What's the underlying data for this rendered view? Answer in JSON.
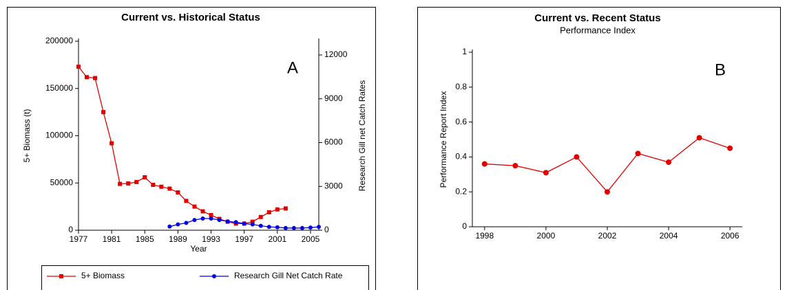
{
  "chart_data": [
    {
      "type": "line",
      "title": "Current vs. Historical Status",
      "annotation": "A",
      "xlabel": "Year",
      "ylabel": "5+ Biomass (t)",
      "y2label": "Research Gill net Catch Rates",
      "x": [
        1977,
        1978,
        1979,
        1980,
        1981,
        1982,
        1983,
        1984,
        1985,
        1986,
        1987,
        1988,
        1989,
        1990,
        1991,
        1992,
        1993,
        1994,
        1995,
        1996,
        1997,
        1998,
        1999,
        2000,
        2001,
        2002,
        2003,
        2004,
        2005,
        2006
      ],
      "series": [
        {
          "name": "5+ Biomass",
          "color": "#e00000",
          "marker": "square",
          "values": [
            173000,
            162000,
            161000,
            125000,
            92000,
            49000,
            49500,
            51000,
            56000,
            48000,
            46000,
            44000,
            40000,
            31000,
            25000,
            20000,
            16000,
            12000,
            9000,
            7000,
            7000,
            9000,
            14000,
            19000,
            22000,
            23000,
            null,
            null,
            null,
            null
          ]
        },
        {
          "name": "Research Gill Net Catch Rate",
          "color": "#0000e0",
          "marker": "circle",
          "axis": "y2",
          "values": [
            null,
            null,
            null,
            null,
            null,
            null,
            null,
            null,
            null,
            null,
            null,
            250,
            400,
            500,
            700,
            800,
            800,
            700,
            600,
            550,
            450,
            400,
            300,
            230,
            200,
            150,
            150,
            150,
            180,
            230
          ]
        }
      ],
      "xlim": [
        1977,
        2006
      ],
      "xticks": [
        1977,
        1981,
        1985,
        1989,
        1993,
        1997,
        2001,
        2005
      ],
      "ylim": [
        0,
        200000
      ],
      "yticks": [
        0,
        50000,
        100000,
        150000,
        200000
      ],
      "y2lim": [
        0,
        12940
      ],
      "y2ticks": [
        0,
        3000,
        6000,
        9000,
        12000
      ],
      "legend": "bottom"
    },
    {
      "type": "line",
      "title": "Current vs. Recent Status",
      "subtitle": "Performance Index",
      "annotation": "B",
      "ylabel": "Performance Report Index",
      "x": [
        1998,
        1999,
        2000,
        2001,
        2002,
        2003,
        2004,
        2005,
        2006
      ],
      "series": [
        {
          "color": "#e00000",
          "marker": "circle",
          "values": [
            0.36,
            0.35,
            0.31,
            0.4,
            0.2,
            0.42,
            0.37,
            0.51,
            0.45
          ]
        }
      ],
      "xlim": [
        1997.6,
        2006.4
      ],
      "xticks": [
        1998,
        2000,
        2002,
        2004,
        2006
      ],
      "ylim": [
        0,
        1
      ],
      "yticks": [
        0,
        0.2,
        0.4,
        0.6,
        0.8,
        1
      ]
    }
  ]
}
